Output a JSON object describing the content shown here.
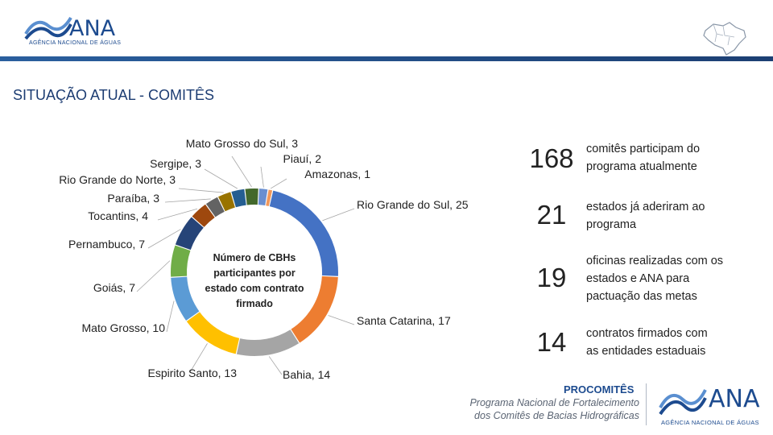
{
  "header": {
    "logo_name": "ANA",
    "logo_subtitle": "AGÊNCIA NACIONAL DE ÁGUAS",
    "map_icon": "brazil-map-icon",
    "bar_color": "#1c3f73"
  },
  "page_title": "SITUAÇÃO ATUAL - COMITÊS",
  "chart_data": {
    "type": "pie",
    "variant": "donut",
    "center_label": "Número de CBHs participantes por estado com contrato firmado",
    "center_lines": [
      "Número de CBHs",
      "participantes por",
      "estado com contrato",
      "firmado"
    ],
    "categories": [
      "Rio Grande do Sul",
      "Santa Catarina",
      "Bahia",
      "Espirito Santo",
      "Mato Grosso",
      "Goiás",
      "Pernambuco",
      "Tocantins",
      "Paraíba",
      "Rio Grande do Norte",
      "Sergipe",
      "Mato Grosso do Sul",
      "Piauí",
      "Amazonas"
    ],
    "values": [
      25,
      17,
      14,
      13,
      10,
      7,
      7,
      4,
      3,
      3,
      3,
      3,
      2,
      1
    ],
    "labels": [
      "Rio Grande do Sul, 25",
      "Santa Catarina, 17",
      "Bahia, 14",
      "Espirito Santo, 13",
      "Mato Grosso, 10",
      "Goiás, 7",
      "Pernambuco, 7",
      "Tocantins, 4",
      "Paraíba, 3",
      "Rio Grande do Norte, 3",
      "Sergipe, 3",
      "Mato Grosso do Sul, 3",
      "Piauí, 2",
      "Amazonas, 1"
    ],
    "colors": [
      "#4472C4",
      "#ED7D31",
      "#A5A5A5",
      "#FFC000",
      "#5B9BD5",
      "#70AD47",
      "#264478",
      "#9E480E",
      "#636363",
      "#997300",
      "#255E91",
      "#43682B",
      "#698ED0",
      "#F1975A"
    ]
  },
  "stats": [
    {
      "number": "168",
      "text_lines": [
        "comitês participam do",
        "programa atualmente"
      ]
    },
    {
      "number": "21",
      "text_lines": [
        "estados já aderiram ao",
        "programa"
      ]
    },
    {
      "number": "19",
      "text_lines": [
        "oficinas realizadas com os",
        "estados e ANA para",
        "pactuação das metas"
      ]
    },
    {
      "number": "14",
      "text_lines": [
        "contratos firmados com",
        "as entidades estaduais"
      ]
    }
  ],
  "footer": {
    "program_name": "PROCOMITÊS",
    "program_line1": "Programa Nacional de Fortalecimento",
    "program_line2": "dos Comitês de Bacias Hidrográficas",
    "logo_name": "ANA",
    "logo_subtitle": "AGÊNCIA NACIONAL DE ÁGUAS"
  }
}
